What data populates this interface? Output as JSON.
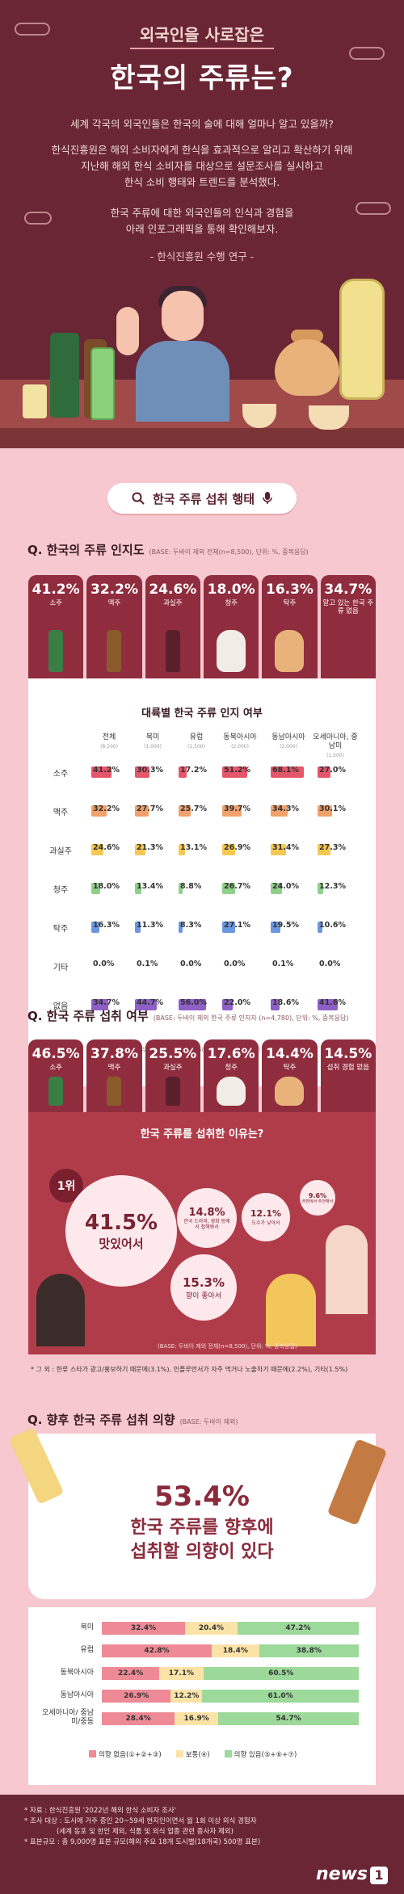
{
  "hero": {
    "sup_title": "외국인을 사로잡은",
    "title": "한국의 주류는?",
    "para1": "세계 각국의 외국인들은 한국의 술에 대해 얼마나 알고 있을까?",
    "para2_l1": "한식진흥원은 해외 소비자에게 한식을 효과적으로 알리고 확산하기 위해",
    "para2_l2": "지난해 해외 한식 소비자를 대상으로 설문조사를 실시하고",
    "para2_l3": "한식 소비 행태와 트렌드를 분석했다.",
    "para3_l1": "한국 주류에 대한 외국인들의 인식과 경험을",
    "para3_l2": "아래 인포그래픽을 통해 확인해보자.",
    "para4": "- 한식진흥원 수행 연구 -"
  },
  "search": {
    "text": "한국 주류 섭취 행태"
  },
  "awareness": {
    "title": "Q. 한국의 주류 인지도",
    "base": "(BASE: 두바이 제외 전체(n=8,500), 단위: %, 중복응답)",
    "cards": [
      {
        "value": "41.2",
        "label": "소주"
      },
      {
        "value": "32.2",
        "label": "맥주"
      },
      {
        "value": "24.6",
        "label": "과실주"
      },
      {
        "value": "18.0",
        "label": "청주"
      },
      {
        "value": "16.3",
        "label": "탁주"
      },
      {
        "value": "34.7",
        "label": "알고 있는 한국 주류 없음"
      }
    ],
    "table_title": "대륙별 한국 주류 인지 여부",
    "columns": [
      {
        "name": "전체",
        "n": "(8,500)"
      },
      {
        "name": "북미",
        "n": "(1,000)"
      },
      {
        "name": "유럽",
        "n": "(1,500)"
      },
      {
        "name": "동북아시아",
        "n": "(2,000)"
      },
      {
        "name": "동남아시아",
        "n": "(2,000)"
      },
      {
        "name": "오세아니아, 중남미",
        "n": "(1,500)"
      }
    ],
    "rows": [
      {
        "label": "소주",
        "color": "#e4566a",
        "values": [
          "41.2",
          "30.3",
          "17.2",
          "51.2",
          "68.1",
          "27.0"
        ]
      },
      {
        "label": "맥주",
        "color": "#f2a16b",
        "values": [
          "32.2",
          "27.7",
          "25.7",
          "39.7",
          "34.3",
          "30.1"
        ]
      },
      {
        "label": "과실주",
        "color": "#f5c851",
        "values": [
          "24.6",
          "21.3",
          "13.1",
          "26.9",
          "31.4",
          "27.3"
        ]
      },
      {
        "label": "청주",
        "color": "#8ed18a",
        "values": [
          "18.0",
          "13.4",
          "8.8",
          "26.7",
          "24.0",
          "12.3"
        ]
      },
      {
        "label": "탁주",
        "color": "#6b96e0",
        "values": [
          "16.3",
          "11.3",
          "8.3",
          "27.1",
          "19.5",
          "10.6"
        ]
      },
      {
        "label": "기타",
        "color": "#bbbbbb",
        "values": [
          "0.0",
          "0.1",
          "0.0",
          "0.0",
          "0.1",
          "0.0"
        ]
      },
      {
        "label": "없음",
        "color": "#8d5fc7",
        "values": [
          "34.7",
          "44.7",
          "56.0",
          "22.0",
          "18.6",
          "41.6"
        ]
      }
    ],
    "table_note": "(BASE: 두바이 제외 전체(n=8,500), 단위: %, 중복응답)"
  },
  "intake": {
    "title": "Q. 한국 주류 섭취 여부",
    "base": "(BASE: 두바이 제외 한국 주류 인지자 (n=4,780), 단위: %, 중복응답)",
    "cards": [
      {
        "value": "46.5",
        "label": "소주"
      },
      {
        "value": "37.8",
        "label": "맥주"
      },
      {
        "value": "25.5",
        "label": "과실주"
      },
      {
        "value": "17.6",
        "label": "청주"
      },
      {
        "value": "14.4",
        "label": "탁주"
      },
      {
        "value": "14.5",
        "label": "섭취 경험 없음"
      }
    ]
  },
  "reasons": {
    "title": "한국 주류를 섭취한 이유는?",
    "rank_label": "1위",
    "top": {
      "value": "41.5%",
      "label": "맛있어서"
    },
    "second": {
      "value": "15.3%",
      "label": "향이 좋아서"
    },
    "third": {
      "value": "14.8%",
      "label": "한국 드라마, 영화 등에서 접해봐서"
    },
    "fourth": {
      "value": "12.1%",
      "label": "도수가 낮아서"
    },
    "fifth": {
      "value": "9.6%",
      "label": "주변에서 추천해서"
    },
    "note": "(BASE: 두바이 제외 전체(n=8,500), 단위: %, 중복응답)",
    "other": "* 그 외 : 한류 스타가 광고/홍보하기 때문에(3.1%), 인플루언서가 자주 먹거나 노출하기 때문에(2.2%), 기타(1.5%)"
  },
  "intent": {
    "title": "Q. 향후 한국 주류 섭취 의향",
    "base": "(BASE: 두바이 제외)",
    "value": "53.4%",
    "text_l1": "한국 주류를 향후에",
    "text_l2": "섭취할 의향이 있다",
    "rows": [
      {
        "label": "북미",
        "v": [
          32.4,
          20.4,
          47.2
        ],
        "t": [
          "32.4%",
          "20.4%",
          "47.2%"
        ]
      },
      {
        "label": "유럽",
        "v": [
          42.8,
          18.4,
          38.8
        ],
        "t": [
          "42.8%",
          "18.4%",
          "38.8%"
        ]
      },
      {
        "label": "동북아시아",
        "v": [
          22.4,
          17.1,
          60.5
        ],
        "t": [
          "22.4%",
          "17.1%",
          "60.5%"
        ]
      },
      {
        "label": "동남아시아",
        "v": [
          26.9,
          12.2,
          61.0
        ],
        "t": [
          "26.9%",
          "12.2%",
          "61.0%"
        ]
      },
      {
        "label": "오세아니아/ 중남미/중동",
        "v": [
          28.4,
          16.9,
          54.7
        ],
        "t": [
          "28.4%",
          "16.9%",
          "54.7%"
        ]
      }
    ],
    "legend": [
      "의향 없음(①+②+③)",
      "보통(④)",
      "의향 있음(⑤+⑥+⑦)"
    ],
    "colors": [
      "#ee8a96",
      "#fbe3a7",
      "#9cd99a"
    ]
  },
  "footer": {
    "l1": "* 자료 : 한식진흥원 '2022년 해외 한식 소비자 조사'",
    "l2": "* 조사 대상 : 도시에 거주 중인 20~59세 현지인이면서 월 1회 이상 외식 경험자",
    "l3": "(세계 동포 및 한인 제외, 식품 및 외식 업종 관련 종사자 제외)",
    "l4": "* 표본규모 : 총 9,000명 표본 규모(해외 주요 18개 도시별(18개국) 500명 표본)",
    "logo": "news",
    "logo_num": "1"
  },
  "chart_data": {
    "type": "bar",
    "title": "대륙별 한국 주류 인지 여부",
    "categories": [
      "전체",
      "북미",
      "유럽",
      "동북아시아",
      "동남아시아",
      "오세아니아, 중남미"
    ],
    "series": [
      {
        "name": "소주",
        "values": [
          41.2,
          30.3,
          17.2,
          51.2,
          68.1,
          27.0
        ]
      },
      {
        "name": "맥주",
        "values": [
          32.2,
          27.7,
          25.7,
          39.7,
          34.3,
          30.1
        ]
      },
      {
        "name": "과실주",
        "values": [
          24.6,
          21.3,
          13.1,
          26.9,
          31.4,
          27.3
        ]
      },
      {
        "name": "청주",
        "values": [
          18.0,
          13.4,
          8.8,
          26.7,
          24.0,
          12.3
        ]
      },
      {
        "name": "탁주",
        "values": [
          16.3,
          11.3,
          8.3,
          27.1,
          19.5,
          10.6
        ]
      },
      {
        "name": "기타",
        "values": [
          0.0,
          0.1,
          0.0,
          0.0,
          0.1,
          0.0
        ]
      },
      {
        "name": "없음",
        "values": [
          34.7,
          44.7,
          56.0,
          22.0,
          18.6,
          41.6
        ]
      }
    ]
  }
}
